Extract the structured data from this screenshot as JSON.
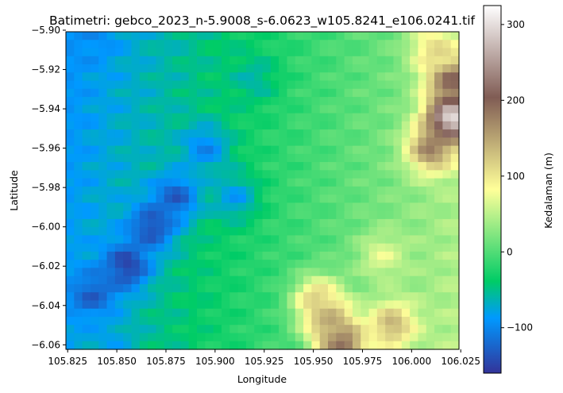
{
  "chart_data": {
    "type": "heatmap",
    "title": "Batimetri: gebco_2023_n-5.9008_s-6.0623_w105.8241_e106.0241.tif",
    "xlabel": "Longitude",
    "ylabel": "Latitude",
    "xlim": [
      105.8241,
      106.0241
    ],
    "ylim": [
      -6.0623,
      -5.9008
    ],
    "x_ticks": [
      105.825,
      105.85,
      105.875,
      105.9,
      105.925,
      105.95,
      105.975,
      106.0,
      106.025
    ],
    "x_tick_labels": [
      "105.825",
      "105.850",
      "105.875",
      "105.900",
      "105.925",
      "105.950",
      "105.975",
      "106.000",
      "106.025"
    ],
    "y_ticks": [
      -5.9,
      -5.92,
      -5.94,
      -5.96,
      -5.98,
      -6.0,
      -6.02,
      -6.04,
      -6.06
    ],
    "y_tick_labels": [
      "−5.90",
      "−5.92",
      "−5.94",
      "−5.96",
      "−5.98",
      "−6.00",
      "−6.02",
      "−6.04",
      "−6.06"
    ],
    "grid": false,
    "colormap": "terrain",
    "colorbar": {
      "label": "Kedalaman (m)",
      "vmin": -160,
      "vmax": 325,
      "ticks": [
        -100,
        0,
        100,
        200,
        300
      ],
      "tick_labels": [
        "−100",
        "0",
        "100",
        "200",
        "300"
      ]
    },
    "grid_size": {
      "cols": 48,
      "rows": 39
    },
    "value_range": {
      "min": -160,
      "max": 325
    },
    "features": [
      {
        "kind": "trough",
        "lon": 105.855,
        "lat": -6.02,
        "value": -150
      },
      {
        "kind": "trough",
        "lon": 105.868,
        "lat": -6.0,
        "value": -140
      },
      {
        "kind": "trough",
        "lon": 105.838,
        "lat": -6.035,
        "value": -130
      },
      {
        "kind": "trough",
        "lon": 105.88,
        "lat": -5.985,
        "value": -130
      },
      {
        "kind": "trough",
        "lon": 105.895,
        "lat": -5.96,
        "value": -100
      },
      {
        "kind": "trough",
        "lon": 105.838,
        "lat": -5.905,
        "value": -95
      },
      {
        "kind": "trough",
        "lon": 105.91,
        "lat": -5.985,
        "value": -85
      },
      {
        "kind": "trough",
        "lon": 105.845,
        "lat": -6.057,
        "value": -80
      },
      {
        "kind": "trough",
        "lon": 105.92,
        "lat": -5.925,
        "value": -60
      },
      {
        "kind": "peak",
        "lon": 106.02,
        "lat": -5.945,
        "value": 325
      },
      {
        "kind": "peak",
        "lon": 106.02,
        "lat": -5.925,
        "value": 210
      },
      {
        "kind": "peak",
        "lon": 106.01,
        "lat": -5.96,
        "value": 180
      },
      {
        "kind": "peak",
        "lon": 105.965,
        "lat": -6.06,
        "value": 200
      },
      {
        "kind": "peak",
        "lon": 105.958,
        "lat": -6.048,
        "value": 160
      },
      {
        "kind": "peak",
        "lon": 105.952,
        "lat": -6.037,
        "value": 120
      },
      {
        "kind": "peak",
        "lon": 105.99,
        "lat": -6.05,
        "value": 140
      },
      {
        "kind": "peak",
        "lon": 106.012,
        "lat": -5.91,
        "value": 110
      },
      {
        "kind": "peak",
        "lon": 105.985,
        "lat": -6.015,
        "value": 70
      }
    ]
  }
}
